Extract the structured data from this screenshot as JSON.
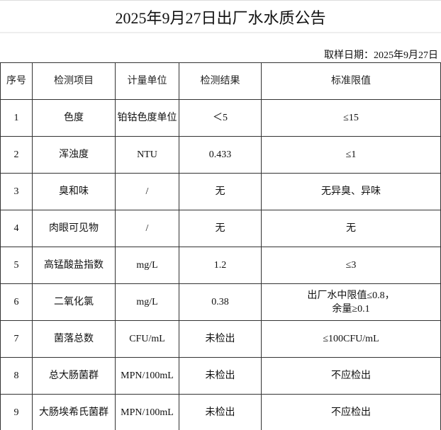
{
  "title": "2025年9月27日出厂水水质公告",
  "sampling_date": "取样日期：2025年9月27日",
  "headers": [
    "序号",
    "检测项目",
    "计量单位",
    "检测结果",
    "标准限值"
  ],
  "rows": [
    [
      "1",
      "色度",
      "铂钴色度单位",
      "＜5",
      "≤15"
    ],
    [
      "2",
      "浑浊度",
      "NTU",
      "0.433",
      "≤1"
    ],
    [
      "3",
      "臭和味",
      "/",
      "无",
      "无异臭、异味"
    ],
    [
      "4",
      "肉眼可见物",
      "/",
      "无",
      "无"
    ],
    [
      "5",
      "高锰酸盐指数",
      "mg/L",
      "1.2",
      "≤3"
    ],
    [
      "6",
      "二氧化氯",
      "mg/L",
      "0.38",
      "出厂水中限值≤0.8，\n余量≥0.1"
    ],
    [
      "7",
      "菌落总数",
      "CFU/mL",
      "未检出",
      "≤100CFU/mL"
    ],
    [
      "8",
      "总大肠菌群",
      "MPN/100mL",
      "未检出",
      "不应检出"
    ],
    [
      "9",
      "大肠埃希氏菌群",
      "MPN/100mL",
      "未检出",
      "不应检出"
    ]
  ]
}
